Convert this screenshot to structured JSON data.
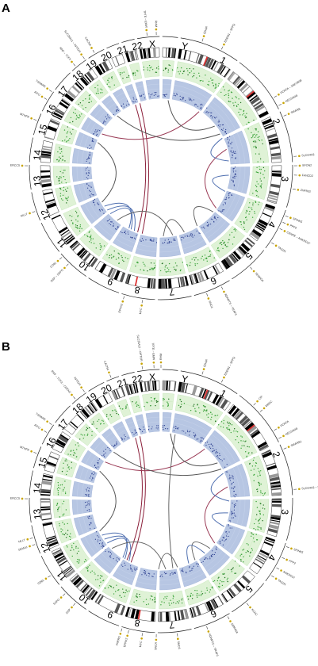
{
  "panels": [
    {
      "label": "A",
      "chromosomes": [
        "1",
        "2",
        "3",
        "4",
        "5",
        "6",
        "7",
        "8",
        "9",
        "10",
        "11",
        "12",
        "13",
        "14",
        "15",
        "16",
        "17",
        "18",
        "19",
        "20",
        "21",
        "22",
        "X",
        "Y"
      ],
      "gene_labels": [
        {
          "text": "EDAR",
          "angle": 18
        },
        {
          "text": "EDEM1 – SFPQ",
          "angle": 27
        },
        {
          "text": "PCNTA – ZNF280B",
          "angle": 58
        },
        {
          "text": "NECDB4B",
          "angle": 62
        },
        {
          "text": "SMARB",
          "angle": 67
        },
        {
          "text": "SLCO4A3",
          "angle": 85
        },
        {
          "text": "SPON2",
          "angle": 89
        },
        {
          "text": "FANCD2",
          "angle": 93
        },
        {
          "text": "ZNF853",
          "angle": 99
        },
        {
          "text": "SPINK5",
          "angle": 111
        },
        {
          "text": "CENPE – ANKRD37",
          "angle": 117
        },
        {
          "text": "PPP2",
          "angle": 114
        },
        {
          "text": "TAS2R",
          "angle": 124
        },
        {
          "text": "SEMA5A",
          "angle": 138
        },
        {
          "text": "ADAMTS – TRAF3",
          "angle": 153
        },
        {
          "text": "SNCA",
          "angle": 160
        },
        {
          "text": "MYC",
          "angle": 188
        },
        {
          "text": "EPHX2",
          "angle": 196
        },
        {
          "text": "CD81",
          "angle": 228
        },
        {
          "text": "DSP – SSPO",
          "angle": 224
        },
        {
          "text": "MLLT",
          "angle": 251
        },
        {
          "text": "ERCC5",
          "angle": 271
        },
        {
          "text": "MTHFR",
          "angle": 291
        },
        {
          "text": "IFFO",
          "angle": 301
        },
        {
          "text": "TSNARE",
          "angle": 305
        },
        {
          "text": "RNF – TCF3",
          "angle": 320
        },
        {
          "text": "SLC26A11 – RPTOR",
          "angle": 325
        },
        {
          "text": "CACNA",
          "angle": 330
        },
        {
          "text": "TPTE – EMW",
          "angle": 354
        },
        {
          "text": "RHM",
          "angle": 358
        }
      ],
      "links": [
        {
          "a": 342,
          "b": 196,
          "color": "#8b1f3a"
        },
        {
          "a": 338,
          "b": 200,
          "color": "#8b1f3a"
        },
        {
          "a": 300,
          "b": 34,
          "color": "#9a3a55"
        },
        {
          "a": 292,
          "b": 240,
          "color": "#555555"
        },
        {
          "a": 236,
          "b": 206,
          "color": "#4f6fb0"
        },
        {
          "a": 232,
          "b": 203,
          "color": "#4f6fb0"
        },
        {
          "a": 228,
          "b": 208,
          "color": "#4f6fb0"
        },
        {
          "a": 220,
          "b": 170,
          "color": "#666666"
        },
        {
          "a": 178,
          "b": 160,
          "color": "#666666"
        },
        {
          "a": 148,
          "b": 130,
          "color": "#666666"
        },
        {
          "a": 110,
          "b": 96,
          "color": "#4f6fb0"
        },
        {
          "a": 74,
          "b": 126,
          "color": "#9a3a55"
        },
        {
          "a": 52,
          "b": 6,
          "color": "#555555"
        },
        {
          "a": 64,
          "b": 84,
          "color": "#4f6fb0"
        },
        {
          "a": 320,
          "b": 60,
          "color": "#555555"
        }
      ]
    },
    {
      "label": "B",
      "chromosomes": [
        "1",
        "2",
        "3",
        "4",
        "5",
        "6",
        "7",
        "8",
        "9",
        "10",
        "11",
        "12",
        "13",
        "14",
        "15",
        "16",
        "17",
        "18",
        "19",
        "20",
        "21",
        "22",
        "X",
        "Y"
      ],
      "gene_labels": [
        {
          "text": "EDAR",
          "angle": 18
        },
        {
          "text": "EDEM1 – SFPQ",
          "angle": 27
        },
        {
          "text": "CIP",
          "angle": 44
        },
        {
          "text": "MBSC",
          "angle": 48
        },
        {
          "text": "PCNTA",
          "angle": 58
        },
        {
          "text": "NECDB4B",
          "angle": 62
        },
        {
          "text": "SMARB1",
          "angle": 67
        },
        {
          "text": "SLCO4A3 – SPON2",
          "angle": 85
        },
        {
          "text": "SPINK5",
          "angle": 110
        },
        {
          "text": "PPP2",
          "angle": 115
        },
        {
          "text": "ANKRD37",
          "angle": 120
        },
        {
          "text": "TAS2R",
          "angle": 124
        },
        {
          "text": "KCNC",
          "angle": 140
        },
        {
          "text": "SEMA5A",
          "angle": 150
        },
        {
          "text": "ADAMTS – TRAF3",
          "angle": 160
        },
        {
          "text": "SMC6",
          "angle": 173
        },
        {
          "text": "SNCA",
          "angle": 182
        },
        {
          "text": "MYC",
          "angle": 188
        },
        {
          "text": "EPHX2",
          "angle": 194
        },
        {
          "text": "ANKRD",
          "angle": 197
        },
        {
          "text": "DSP",
          "angle": 220
        },
        {
          "text": "SSPO",
          "angle": 226
        },
        {
          "text": "CD81",
          "angle": 236
        },
        {
          "text": "SEMA1",
          "angle": 251
        },
        {
          "text": "MLLT",
          "angle": 254
        },
        {
          "text": "ERCC5",
          "angle": 271
        },
        {
          "text": "MTHFR",
          "angle": 291
        },
        {
          "text": "IFFO",
          "angle": 301
        },
        {
          "text": "TSNARE",
          "angle": 305
        },
        {
          "text": "RNF – TCF3 – CDKN2",
          "angle": 320
        },
        {
          "text": "RPTOR",
          "angle": 325
        },
        {
          "text": "CACNA",
          "angle": 338
        },
        {
          "text": "SLC26A11 – RPTOR",
          "angle": 352
        },
        {
          "text": "TPTE – EMW",
          "angle": 357
        },
        {
          "text": "RHM",
          "angle": 0
        }
      ],
      "links": [
        {
          "a": 342,
          "b": 206,
          "color": "#8b1f3a"
        },
        {
          "a": 338,
          "b": 210,
          "color": "#8b1f3a"
        },
        {
          "a": 305,
          "b": 40,
          "color": "#9a3a55"
        },
        {
          "a": 296,
          "b": 244,
          "color": "#555555"
        },
        {
          "a": 240,
          "b": 212,
          "color": "#4f6fb0"
        },
        {
          "a": 236,
          "b": 208,
          "color": "#4f6fb0"
        },
        {
          "a": 232,
          "b": 214,
          "color": "#4f6fb0"
        },
        {
          "a": 226,
          "b": 176,
          "color": "#666666"
        },
        {
          "a": 182,
          "b": 166,
          "color": "#666666"
        },
        {
          "a": 150,
          "b": 134,
          "color": "#666666"
        },
        {
          "a": 156,
          "b": 140,
          "color": "#4f6fb0"
        },
        {
          "a": 112,
          "b": 100,
          "color": "#4f6fb0"
        },
        {
          "a": 78,
          "b": 128,
          "color": "#9a3a55"
        },
        {
          "a": 56,
          "b": 8,
          "color": "#555555"
        },
        {
          "a": 66,
          "b": 90,
          "color": "#4f6fb0"
        },
        {
          "a": 316,
          "b": 62,
          "color": "#555555"
        },
        {
          "a": 12,
          "b": 170,
          "color": "#666666"
        }
      ]
    }
  ]
}
